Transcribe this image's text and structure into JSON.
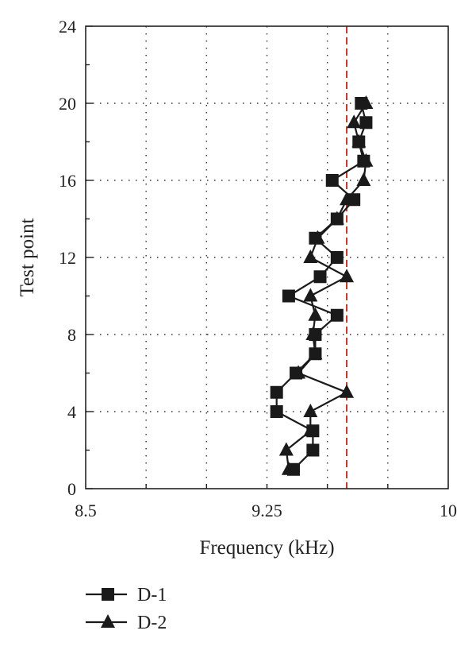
{
  "chart_data": {
    "type": "line",
    "xlabel": "Frequency (kHz)",
    "ylabel": "Test point",
    "xlim": [
      8.5,
      10
    ],
    "ylim": [
      0,
      24
    ],
    "x_ticks": [
      "8.5",
      "9.25",
      "10"
    ],
    "y_ticks": [
      "0",
      "4",
      "8",
      "12",
      "16",
      "20",
      "24"
    ],
    "grid": true,
    "reference_line": {
      "x": 9.58,
      "color": "#c0392b",
      "style": "dashed"
    },
    "legend_position": "bottom-left",
    "series": [
      {
        "name": "D-1",
        "marker": "square",
        "color": "#1a1a1a",
        "points": [
          {
            "x": 9.36,
            "y": 1
          },
          {
            "x": 9.44,
            "y": 2
          },
          {
            "x": 9.44,
            "y": 3
          },
          {
            "x": 9.29,
            "y": 4
          },
          {
            "x": 9.29,
            "y": 5
          },
          {
            "x": 9.37,
            "y": 6
          },
          {
            "x": 9.45,
            "y": 7
          },
          {
            "x": 9.45,
            "y": 8
          },
          {
            "x": 9.54,
            "y": 9
          },
          {
            "x": 9.34,
            "y": 10
          },
          {
            "x": 9.47,
            "y": 11
          },
          {
            "x": 9.54,
            "y": 12
          },
          {
            "x": 9.45,
            "y": 13
          },
          {
            "x": 9.54,
            "y": 14
          },
          {
            "x": 9.61,
            "y": 15
          },
          {
            "x": 9.52,
            "y": 16
          },
          {
            "x": 9.65,
            "y": 17
          },
          {
            "x": 9.63,
            "y": 18
          },
          {
            "x": 9.66,
            "y": 19
          },
          {
            "x": 9.64,
            "y": 20
          }
        ]
      },
      {
        "name": "D-2",
        "marker": "triangle",
        "color": "#1a1a1a",
        "points": [
          {
            "x": 9.34,
            "y": 1
          },
          {
            "x": 9.33,
            "y": 2
          },
          {
            "x": 9.43,
            "y": 3
          },
          {
            "x": 9.43,
            "y": 4
          },
          {
            "x": 9.58,
            "y": 5
          },
          {
            "x": 9.38,
            "y": 6
          },
          {
            "x": 9.45,
            "y": 7
          },
          {
            "x": 9.44,
            "y": 8
          },
          {
            "x": 9.45,
            "y": 9
          },
          {
            "x": 9.43,
            "y": 10
          },
          {
            "x": 9.58,
            "y": 11
          },
          {
            "x": 9.43,
            "y": 12
          },
          {
            "x": 9.46,
            "y": 13
          },
          {
            "x": 9.54,
            "y": 14
          },
          {
            "x": 9.58,
            "y": 15
          },
          {
            "x": 9.65,
            "y": 16
          },
          {
            "x": 9.66,
            "y": 17
          },
          {
            "x": 9.63,
            "y": 18
          },
          {
            "x": 9.61,
            "y": 19
          },
          {
            "x": 9.66,
            "y": 20
          }
        ]
      }
    ]
  }
}
